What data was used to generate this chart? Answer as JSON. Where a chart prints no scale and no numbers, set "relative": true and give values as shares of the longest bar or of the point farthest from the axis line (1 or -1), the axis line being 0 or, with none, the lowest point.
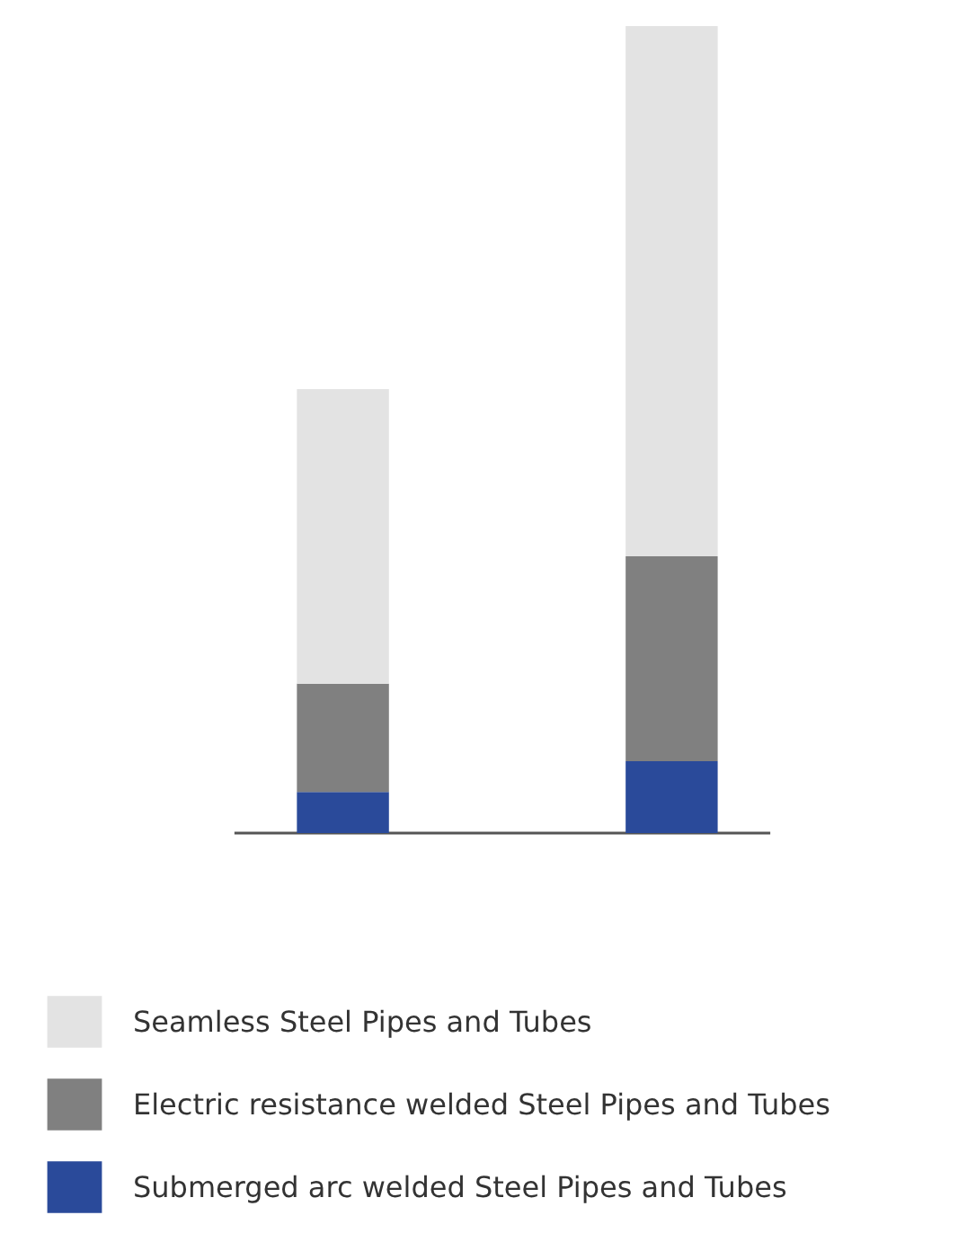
{
  "chart_data": {
    "type": "bar",
    "relative": true,
    "stacked": true,
    "legend": "bottom",
    "categories": [
      null,
      null
    ],
    "series": [
      {
        "name": "Submerged arc welded Steel Pipes and Tubes",
        "color": "#2a4a9a",
        "values": [
          0.051,
          0.089
        ]
      },
      {
        "name": "Electric resistance welded Steel Pipes and Tubes",
        "color": "#808080",
        "values": [
          0.134,
          0.254
        ]
      },
      {
        "name": "Seamless Steel Pipes and Tubes",
        "color": "#e3e3e3",
        "values": [
          0.365,
          0.657
        ]
      }
    ]
  }
}
